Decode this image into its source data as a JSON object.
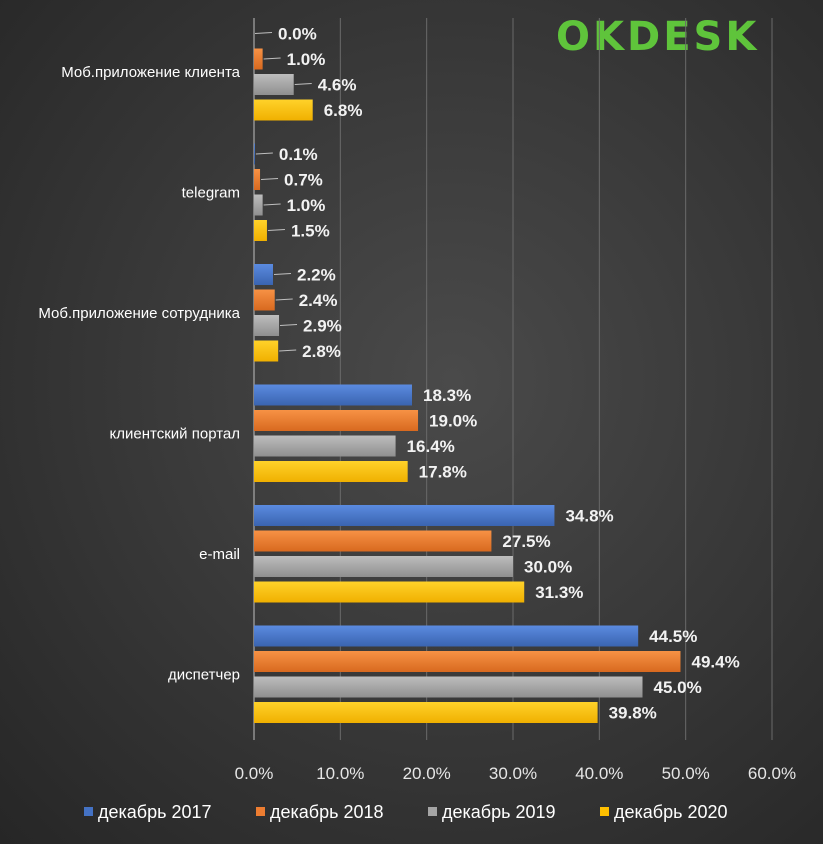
{
  "brand": {
    "logo_text": "OKDESK",
    "logo_color": "#5fc43b"
  },
  "chart_data": {
    "type": "bar",
    "orientation": "horizontal",
    "categories": [
      "Моб.приложение клиента",
      "telegram",
      "Моб.приложение сотрудника",
      "клиентский портал",
      "e-mail",
      "диспетчер"
    ],
    "series": [
      {
        "name": "декабрь 2017",
        "color": "#4472c4",
        "values": [
          0.0,
          0.1,
          2.2,
          18.3,
          34.8,
          44.5
        ]
      },
      {
        "name": "декабрь 2018",
        "color": "#ed7d31",
        "values": [
          1.0,
          0.7,
          2.4,
          19.0,
          27.5,
          49.4
        ]
      },
      {
        "name": "декабрь 2019",
        "color": "#a5a5a5",
        "values": [
          4.6,
          1.0,
          2.9,
          16.4,
          30.0,
          45.0
        ]
      },
      {
        "name": "декабрь 2020",
        "color": "#ffc000",
        "values": [
          6.8,
          1.5,
          2.8,
          17.8,
          31.3,
          39.8
        ]
      }
    ],
    "xlim": [
      0,
      60
    ],
    "x_ticks": [
      "0.0%",
      "10.0%",
      "20.0%",
      "30.0%",
      "40.0%",
      "50.0%",
      "60.0%"
    ],
    "value_suffix": "%",
    "grid": "vertical",
    "legend": "bottom"
  }
}
